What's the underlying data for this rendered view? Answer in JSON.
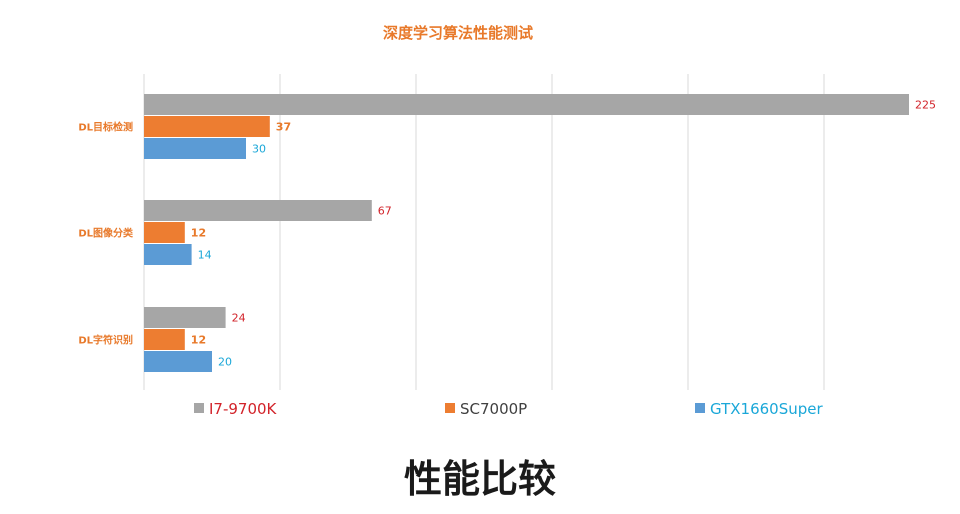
{
  "caption": "性能比较",
  "colors": {
    "title": "#E8792A",
    "category_label": "#E8792A",
    "gridline": "#D9D9D9"
  },
  "chart_data": {
    "type": "bar",
    "orientation": "horizontal",
    "title": "深度学习算法性能测试",
    "categories": [
      "DL目标检测",
      "DL图像分类",
      "DL字符识别"
    ],
    "series": [
      {
        "name": "I7-9700K",
        "values": [
          225,
          67,
          24
        ],
        "color": "#A6A6A6",
        "label_color": "#D2232A",
        "label_bold": false
      },
      {
        "name": "SC7000P",
        "values": [
          37,
          12,
          12
        ],
        "color": "#ED7D31",
        "label_color": "#E8792A",
        "label_bold": true
      },
      {
        "name": "GTX1660Super",
        "values": [
          30,
          14,
          20
        ],
        "color": "#5B9BD5",
        "label_color": "#1AA7D8",
        "label_bold": false
      }
    ],
    "legend_text_colors": [
      "#D2232A",
      "#404040",
      "#1AA7D8"
    ],
    "xlim": [
      0,
      250
    ],
    "grid": true,
    "legend": "bottom"
  }
}
